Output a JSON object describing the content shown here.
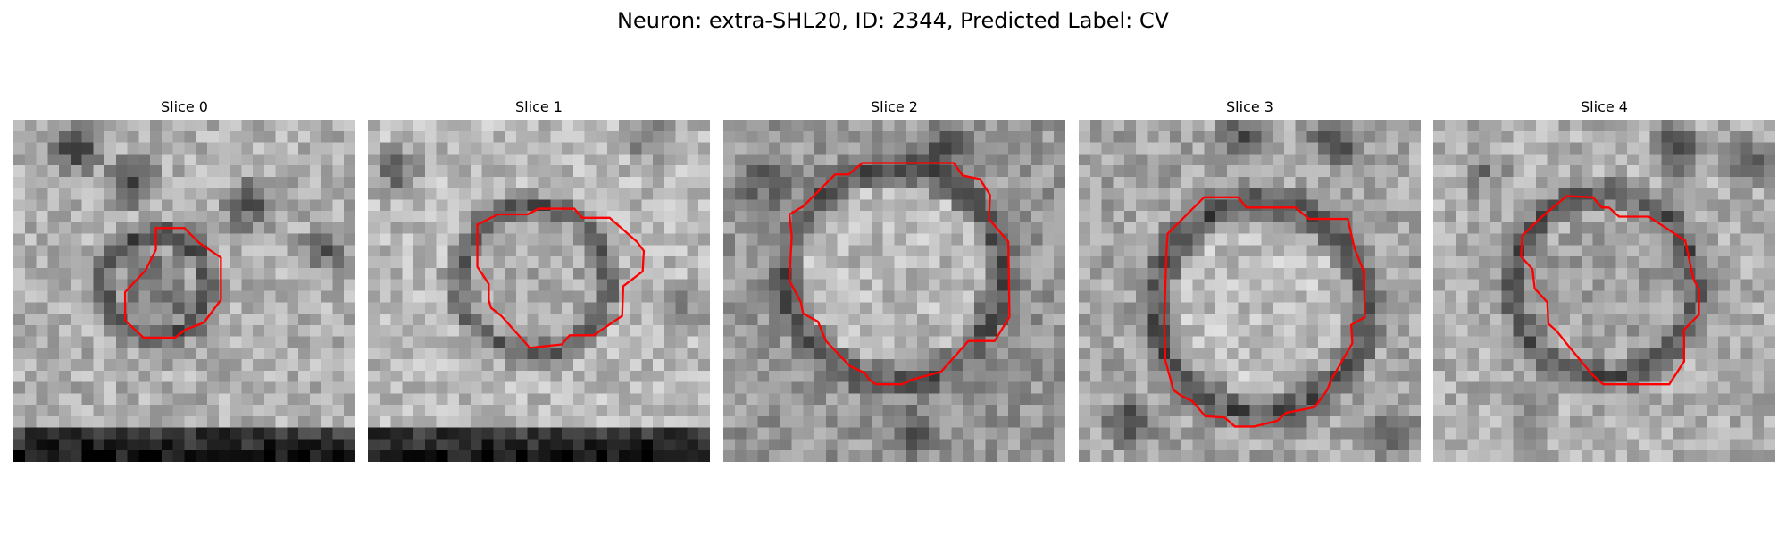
{
  "figure": {
    "title": "Neuron: extra-SHL20, ID: 2344, Predicted Label: CV"
  },
  "colors": {
    "contour": "#ff0000",
    "background": "#ffffff",
    "colormap": "gray"
  },
  "panels": [
    {
      "label": "Slice 0"
    },
    {
      "label": "Slice 1"
    },
    {
      "label": "Slice 2"
    },
    {
      "label": "Slice 3"
    },
    {
      "label": "Slice 4"
    }
  ]
}
